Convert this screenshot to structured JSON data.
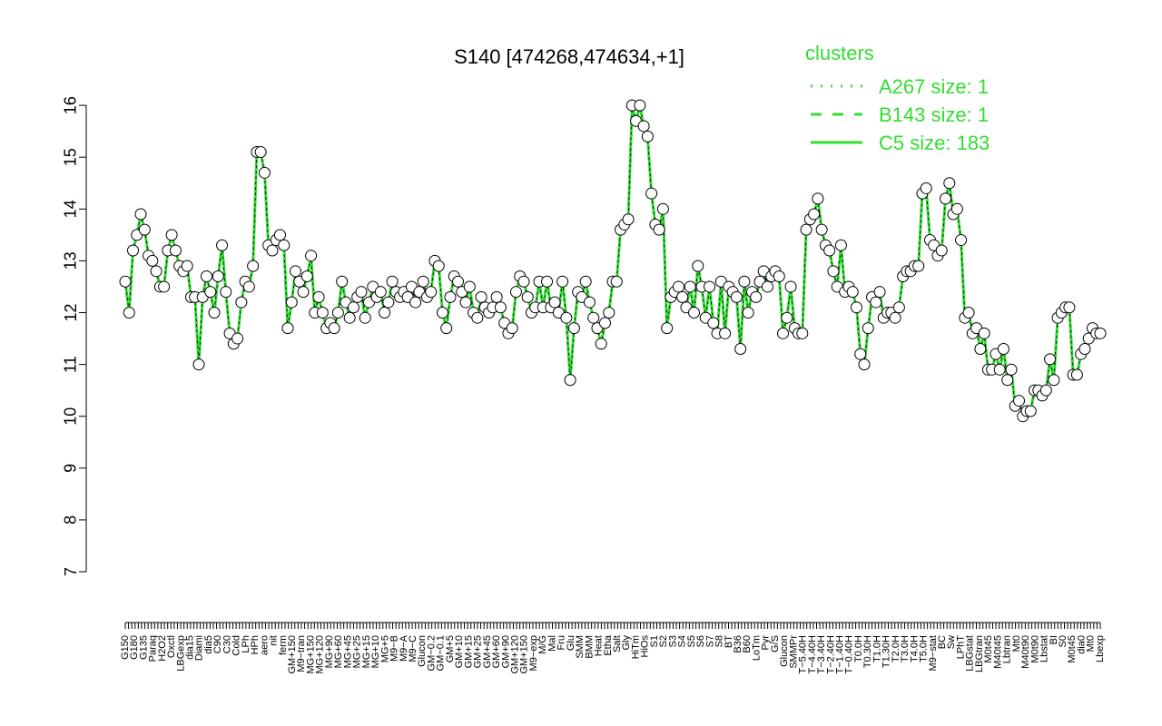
{
  "chart_data": {
    "type": "line",
    "title": "S140 [474268,474634,+1]",
    "xlabel": "",
    "ylabel": "",
    "ylim": [
      7,
      16.5
    ],
    "yticks": [
      7,
      8,
      9,
      10,
      11,
      12,
      13,
      14,
      15,
      16
    ],
    "grid": false,
    "colors": {
      "line": "#33dd33",
      "point_fill": "#ffffff",
      "point_stroke": "#000000",
      "legend": "#33dd33"
    },
    "legend": {
      "title": "clusters",
      "placement": "top-right",
      "entries": [
        {
          "label": "A267 size: 1",
          "style": "dotted"
        },
        {
          "label": "B143 size: 1",
          "style": "dashed"
        },
        {
          "label": "C5 size: 183",
          "style": "solid"
        }
      ]
    },
    "x_labels": [
      "G150",
      "G180",
      "G135",
      "Paraq",
      "H2O2",
      "Oxctl",
      "LBGexp",
      "dia15",
      "Diami",
      "dia5",
      "C90",
      "C30",
      "Cold",
      "LPh",
      "HPh",
      "aero",
      "nit",
      "ferm",
      "GM+150",
      "M9−tran",
      "MG+150",
      "MG+120",
      "MG+90",
      "MG+60",
      "MG+45",
      "MG+25",
      "MG+15",
      "MG+10",
      "MG+5",
      "M9−B",
      "M9−A",
      "M9−C",
      "Glucon",
      "GM−0.2",
      "GM−0.1",
      "GM+5",
      "GM+10",
      "GM+15",
      "GM+25",
      "GM+45",
      "GM+60",
      "GM+90",
      "GM+120",
      "GM+150",
      "M9−exp",
      "M/G",
      "Mal",
      "Fru",
      "Glu",
      "SMM",
      "BMM",
      "Heat",
      "Etha",
      "Salt",
      "Gly",
      "HiTm",
      "HiOs",
      "S1",
      "S2",
      "S3",
      "S4",
      "S5",
      "S6",
      "S7",
      "S8",
      "BT",
      "B36",
      "B60",
      "LoTm",
      "Pyr",
      "G/S",
      "Glucon",
      "SMMPr",
      "T−5.40H",
      "T−4.40H",
      "T−3.40H",
      "T−2.40H",
      "T−1.40H",
      "T−0.40H",
      "T0.0H",
      "T0.30H",
      "T1.0H",
      "T1.30H",
      "T2.0H",
      "T3.0H",
      "T4.0H",
      "T5.0H",
      "M9−stat",
      "BC",
      "Sw",
      "LPhT",
      "LBGstat",
      "LBGtran",
      "M0t45",
      "M40t45",
      "Lbtran",
      "Mt0",
      "M40t90",
      "M0t90",
      "Lbstat",
      "BI",
      "S0",
      "M0t45",
      "dia0",
      "Mt0",
      "Lbexp"
    ],
    "series": [
      {
        "name": "",
        "values": [
          12.6,
          12.0,
          13.2,
          13.5,
          13.9,
          13.6,
          13.1,
          13.0,
          12.8,
          12.5,
          12.5,
          13.2,
          13.5,
          13.2,
          12.9,
          12.8,
          12.9,
          12.3,
          12.3,
          11.0,
          12.3,
          12.7,
          12.4,
          12.0,
          12.7,
          13.3,
          12.4,
          11.6,
          11.4,
          11.5,
          12.2,
          12.6,
          12.5,
          12.9,
          15.1,
          15.1,
          14.7,
          13.3,
          13.2,
          13.4,
          13.5,
          13.3,
          11.7,
          12.2,
          12.8,
          12.6,
          12.4,
          12.7,
          13.1,
          12.0,
          12.3,
          12.0,
          11.7,
          11.8,
          11.7,
          12.0,
          12.6,
          12.2,
          11.9,
          12.1,
          12.3,
          12.4,
          11.9,
          12.2,
          12.5,
          12.3,
          12.4,
          12.0,
          12.2,
          12.6,
          12.4,
          12.3,
          12.4,
          12.3,
          12.5,
          12.2,
          12.4,
          12.6,
          12.3,
          12.4,
          13.0,
          12.9,
          12.0,
          11.7,
          12.3,
          12.7,
          12.6,
          12.4,
          12.2,
          12.5,
          12.0,
          11.9,
          12.3,
          12.1,
          12.0,
          12.1,
          12.3,
          12.1,
          11.8,
          11.6,
          11.7,
          12.4,
          12.7,
          12.6,
          12.3,
          12.0,
          12.1,
          12.6,
          12.1,
          12.6,
          12.1,
          12.2,
          12.0,
          12.6,
          11.9,
          10.7,
          11.7,
          12.4,
          12.3,
          12.6,
          12.2,
          11.9,
          11.7,
          11.4,
          11.8,
          12.0,
          12.6,
          12.6,
          13.6,
          13.7,
          13.8,
          16.0,
          15.7,
          16.0,
          15.6,
          15.4,
          14.3,
          13.7,
          13.6,
          14.0,
          11.7,
          12.3,
          12.4,
          12.5,
          12.3,
          12.1,
          12.5,
          12.0,
          12.9,
          12.5,
          11.9,
          12.5,
          11.8,
          11.6,
          12.6,
          11.6,
          12.5,
          12.4,
          12.3,
          11.3,
          12.6,
          12.0,
          12.4,
          12.3,
          12.6,
          12.8,
          12.5,
          12.7,
          12.8,
          12.7,
          11.6,
          11.9,
          12.5,
          11.7,
          11.6,
          11.6,
          13.6,
          13.8,
          13.9,
          14.2,
          13.6,
          13.3,
          13.2,
          12.8,
          12.5,
          13.3,
          12.4,
          12.5,
          12.4,
          12.1,
          11.2,
          11.0,
          11.7,
          12.3,
          12.2,
          12.4,
          11.9,
          12.0,
          12.0,
          11.9,
          12.1,
          12.7,
          12.8,
          12.8,
          12.9,
          12.9,
          14.3,
          14.4,
          13.4,
          13.3,
          13.1,
          13.2,
          14.2,
          14.5,
          13.9,
          14.0,
          13.4,
          11.9,
          12.0,
          11.6,
          11.7,
          11.3,
          11.6,
          10.9,
          10.9,
          11.2,
          10.9,
          11.3,
          10.7,
          10.9,
          10.2,
          10.3,
          10.0,
          10.1,
          10.1,
          10.5,
          10.5,
          10.4,
          10.5,
          11.1,
          10.7,
          11.9,
          12.0,
          12.1,
          12.1,
          10.8,
          10.8,
          11.2,
          11.3,
          11.5,
          11.7,
          11.6,
          11.6
        ]
      }
    ]
  }
}
